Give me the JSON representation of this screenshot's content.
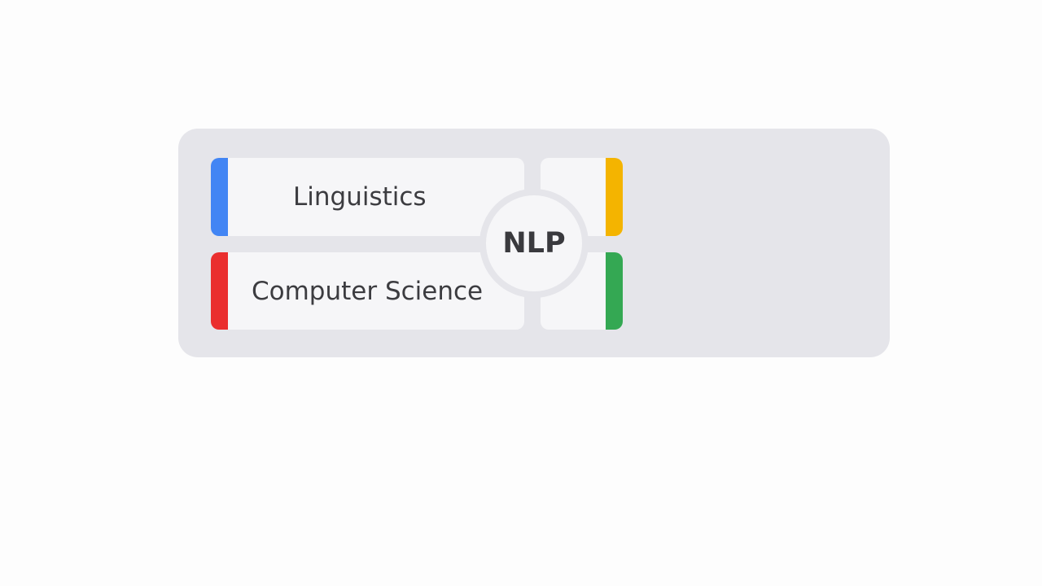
{
  "diagram": {
    "center_label": "NLP",
    "quadrants": [
      {
        "id": "top-left",
        "label": "Linguistics",
        "accent": "#4285f4"
      },
      {
        "id": "bottom-left",
        "label": "Computer Science",
        "accent": "#ea2e2e"
      },
      {
        "id": "top-right",
        "label": "",
        "accent": "#f4b400"
      },
      {
        "id": "bottom-right",
        "label": "",
        "accent": "#34a853"
      }
    ]
  },
  "colors": {
    "panel_bg": "#e5e5ea",
    "card_bg": "#f6f6f8",
    "text": "#3c3c40"
  }
}
